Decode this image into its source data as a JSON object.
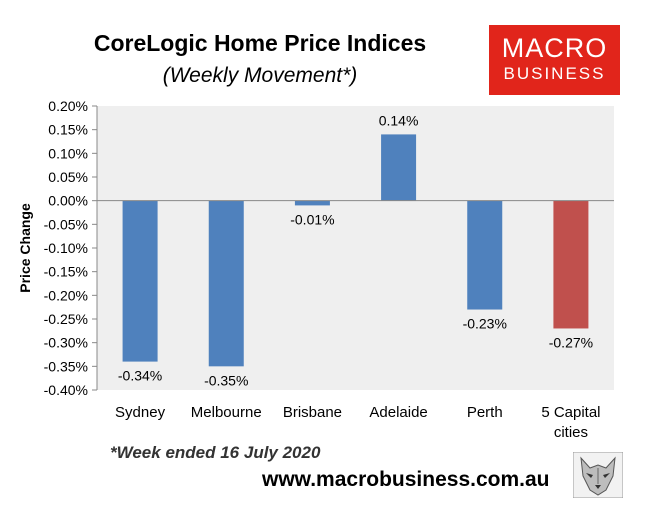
{
  "header": {
    "title": "CoreLogic Home Price Indices",
    "subtitle": "(Weekly Movement*)"
  },
  "logo": {
    "line1": "MACRO",
    "line2": "BUSINESS",
    "color": "#e1251b"
  },
  "footer": {
    "note": "*Week ended 16 July 2020",
    "url": "www.macrobusiness.com.au"
  },
  "chart_data": {
    "type": "bar",
    "title": "CoreLogic Home Price Indices",
    "subtitle": "(Weekly Movement*)",
    "ylabel": "Price Change",
    "xlabel": "",
    "categories": [
      "Sydney",
      "Melbourne",
      "Brisbane",
      "Adelaide",
      "Perth",
      "5 Capital cities"
    ],
    "category_lines": [
      [
        "Sydney"
      ],
      [
        "Melbourne"
      ],
      [
        "Brisbane"
      ],
      [
        "Adelaide"
      ],
      [
        "Perth"
      ],
      [
        "5 Capital",
        "cities"
      ]
    ],
    "values": [
      -0.34,
      -0.35,
      -0.01,
      0.14,
      -0.23,
      -0.27
    ],
    "data_labels": [
      "-0.34%",
      "-0.35%",
      "-0.01%",
      "0.14%",
      "-0.23%",
      "-0.27%"
    ],
    "colors": [
      "#4f81bd",
      "#4f81bd",
      "#4f81bd",
      "#4f81bd",
      "#4f81bd",
      "#c0504d"
    ],
    "ylim": [
      -0.4,
      0.2
    ],
    "yticks": [
      "0.20%",
      "0.15%",
      "0.10%",
      "0.05%",
      "0.00%",
      "-0.05%",
      "-0.10%",
      "-0.15%",
      "-0.20%",
      "-0.25%",
      "-0.30%",
      "-0.35%",
      "-0.40%"
    ],
    "ytick_values": [
      0.2,
      0.15,
      0.1,
      0.05,
      0.0,
      -0.05,
      -0.1,
      -0.15,
      -0.2,
      -0.25,
      -0.3,
      -0.35,
      -0.4
    ],
    "grid": false,
    "legend": "none",
    "plot_background": "#efefef"
  }
}
